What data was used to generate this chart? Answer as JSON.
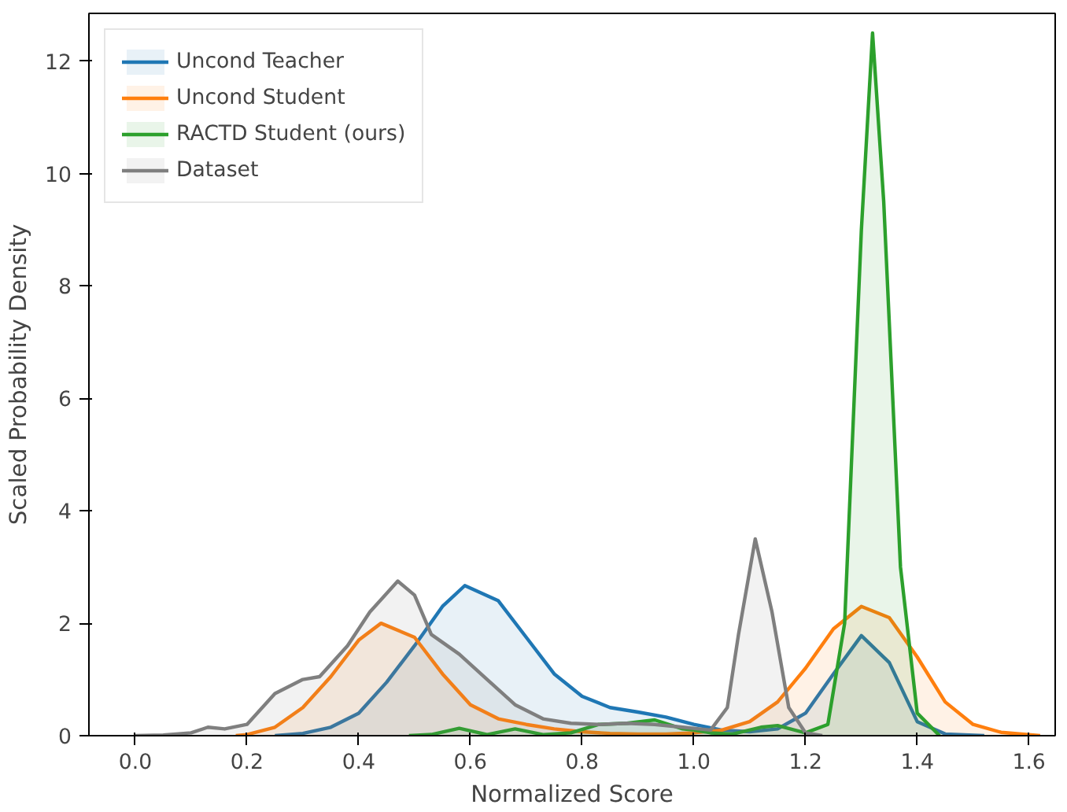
{
  "chart_data": {
    "type": "area",
    "xlabel": "Normalized Score",
    "ylabel": "Scaled Probability Density",
    "xlim": [
      -0.083,
      1.647
    ],
    "ylim": [
      0,
      12.85
    ],
    "xticks": [
      {
        "value": 0,
        "label": "0.0"
      },
      0.2,
      0.4,
      0.6,
      0.8,
      {
        "value": 1,
        "label": "1.0"
      },
      1.2,
      1.4,
      1.6
    ],
    "yticks": [
      0,
      2,
      4,
      6,
      8,
      10,
      12
    ],
    "legend": "top left",
    "grid": false,
    "series": [
      {
        "name": "Uncond Teacher",
        "color": "#1f77b4",
        "x": [
          0.25,
          0.3,
          0.35,
          0.4,
          0.45,
          0.5,
          0.55,
          0.59,
          0.65,
          0.7,
          0.75,
          0.8,
          0.85,
          0.9,
          0.95,
          1.0,
          1.05,
          1.1,
          1.15,
          1.2,
          1.25,
          1.3,
          1.35,
          1.4,
          1.45,
          1.52
        ],
        "values": [
          0,
          0.04,
          0.15,
          0.4,
          0.95,
          1.6,
          2.3,
          2.67,
          2.4,
          1.75,
          1.1,
          0.7,
          0.5,
          0.42,
          0.33,
          0.2,
          0.1,
          0.07,
          0.12,
          0.4,
          1.1,
          1.78,
          1.3,
          0.25,
          0.03,
          0
        ]
      },
      {
        "name": "Uncond Student",
        "color": "#ff7f0e",
        "x": [
          0.18,
          0.2,
          0.25,
          0.3,
          0.35,
          0.4,
          0.44,
          0.5,
          0.55,
          0.6,
          0.65,
          0.7,
          0.75,
          0.8,
          0.85,
          0.9,
          0.95,
          1.0,
          1.05,
          1.1,
          1.15,
          1.2,
          1.25,
          1.3,
          1.35,
          1.4,
          1.45,
          1.5,
          1.55,
          1.62
        ],
        "values": [
          0,
          0.02,
          0.15,
          0.5,
          1.05,
          1.7,
          2.0,
          1.75,
          1.1,
          0.55,
          0.3,
          0.2,
          0.12,
          0.07,
          0.04,
          0.03,
          0.03,
          0.05,
          0.1,
          0.25,
          0.6,
          1.2,
          1.9,
          2.3,
          2.1,
          1.4,
          0.6,
          0.2,
          0.06,
          0
        ]
      },
      {
        "name": "RACTD Student (ours)",
        "color": "#2ca02c",
        "x": [
          0.49,
          0.53,
          0.58,
          0.63,
          0.68,
          0.73,
          0.78,
          0.83,
          0.88,
          0.93,
          0.98,
          1.0,
          1.03,
          1.07,
          1.12,
          1.15,
          1.2,
          1.24,
          1.27,
          1.3,
          1.32,
          1.34,
          1.37,
          1.4,
          1.44
        ],
        "values": [
          0,
          0.02,
          0.13,
          0.02,
          0.12,
          0.02,
          0.05,
          0.2,
          0.22,
          0.28,
          0.12,
          0.1,
          0.05,
          0.03,
          0.15,
          0.18,
          0.05,
          0.2,
          2.0,
          9.0,
          12.5,
          9.5,
          3.0,
          0.4,
          0
        ]
      },
      {
        "name": "Dataset",
        "color": "#7f7f7f",
        "x": [
          0.0,
          0.05,
          0.1,
          0.13,
          0.16,
          0.2,
          0.25,
          0.3,
          0.33,
          0.38,
          0.42,
          0.47,
          0.5,
          0.53,
          0.58,
          0.63,
          0.68,
          0.73,
          0.78,
          0.83,
          0.88,
          0.93,
          0.98,
          1.03,
          1.06,
          1.08,
          1.11,
          1.14,
          1.17,
          1.2,
          1.23
        ],
        "values": [
          0,
          0.01,
          0.05,
          0.15,
          0.12,
          0.2,
          0.75,
          1.0,
          1.05,
          1.6,
          2.2,
          2.75,
          2.5,
          1.8,
          1.45,
          1.0,
          0.55,
          0.3,
          0.22,
          0.2,
          0.22,
          0.2,
          0.15,
          0.1,
          0.5,
          1.8,
          3.5,
          2.2,
          0.5,
          0.05,
          0
        ]
      }
    ]
  }
}
